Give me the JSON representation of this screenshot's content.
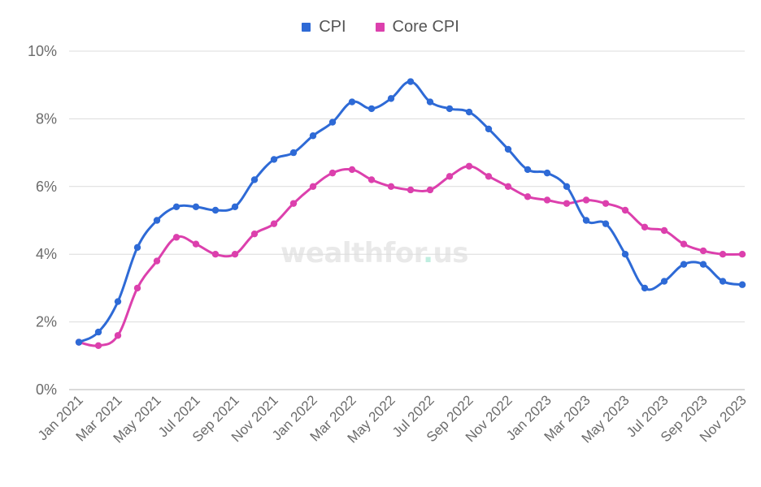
{
  "legend": {
    "cpi_label": "CPI",
    "core_label": "Core CPI"
  },
  "watermark": {
    "part1": "wealthfor",
    "dot": ".",
    "part2": "us"
  },
  "colors": {
    "cpi": "#2e6ad6",
    "core": "#dc40ad",
    "grid": "#dcdcdc",
    "axis": "#b5b5b5"
  },
  "chart_data": {
    "type": "line",
    "ylim": [
      0,
      10
    ],
    "y_ticks": [
      0,
      2,
      4,
      6,
      8,
      10
    ],
    "y_tick_labels": [
      "0%",
      "2%",
      "4%",
      "6%",
      "8%",
      "10%"
    ],
    "grid": true,
    "legend_position": "top-center",
    "x": [
      "Jan 2021",
      "Feb 2021",
      "Mar 2021",
      "Apr 2021",
      "May 2021",
      "Jun 2021",
      "Jul 2021",
      "Aug 2021",
      "Sep 2021",
      "Oct 2021",
      "Nov 2021",
      "Dec 2021",
      "Jan 2022",
      "Feb 2022",
      "Mar 2022",
      "Apr 2022",
      "May 2022",
      "Jun 2022",
      "Jul 2022",
      "Aug 2022",
      "Sep 2022",
      "Oct 2022",
      "Nov 2022",
      "Dec 2022",
      "Jan 2023",
      "Feb 2023",
      "Mar 2023",
      "Apr 2023",
      "May 2023",
      "Jun 2023",
      "Jul 2023",
      "Aug 2023",
      "Sep 2023",
      "Oct 2023",
      "Nov 2023"
    ],
    "x_tick_labels": [
      "Jan 2021",
      "Mar 2021",
      "May 2021",
      "Jul 2021",
      "Sep 2021",
      "Nov 2021",
      "Jan 2022",
      "Mar 2022",
      "May 2022",
      "Jul 2022",
      "Sep 2022",
      "Nov 2022",
      "Jan 2023",
      "Mar 2023",
      "May 2023",
      "Jul 2023",
      "Sep 2023",
      "Nov 2023"
    ],
    "series": [
      {
        "name": "CPI",
        "values": [
          1.4,
          1.7,
          2.6,
          4.2,
          5.0,
          5.4,
          5.4,
          5.3,
          5.4,
          6.2,
          6.8,
          7.0,
          7.5,
          7.9,
          8.5,
          8.3,
          8.6,
          9.1,
          8.5,
          8.3,
          8.2,
          7.7,
          7.1,
          6.5,
          6.4,
          6.0,
          5.0,
          4.9,
          4.0,
          3.0,
          3.2,
          3.7,
          3.7,
          3.2,
          3.1
        ]
      },
      {
        "name": "Core CPI",
        "values": [
          1.4,
          1.3,
          1.6,
          3.0,
          3.8,
          4.5,
          4.3,
          4.0,
          4.0,
          4.6,
          4.9,
          5.5,
          6.0,
          6.4,
          6.5,
          6.2,
          6.0,
          5.9,
          5.9,
          6.3,
          6.6,
          6.3,
          6.0,
          5.7,
          5.6,
          5.5,
          5.6,
          5.5,
          5.3,
          4.8,
          4.7,
          4.3,
          4.1,
          4.0,
          4.0
        ]
      }
    ]
  }
}
